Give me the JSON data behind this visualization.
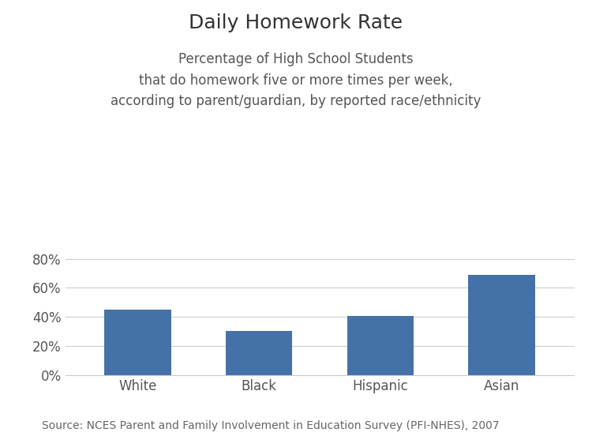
{
  "title": "Daily Homework Rate",
  "subtitle": "Percentage of High School Students\nthat do homework five or more times per week,\naccording to parent/guardian, by reported race/ethnicity",
  "source": "Source: NCES Parent and Family Involvement in Education Survey (PFI-NHES), 2007",
  "categories": [
    "White",
    "Black",
    "Hispanic",
    "Asian"
  ],
  "values": [
    0.45,
    0.305,
    0.405,
    0.69
  ],
  "bar_color": "#4472a8",
  "ylim": [
    0,
    0.9
  ],
  "yticks": [
    0.0,
    0.2,
    0.4,
    0.6,
    0.8
  ],
  "background_color": "#ffffff",
  "title_fontsize": 18,
  "subtitle_fontsize": 12,
  "tick_fontsize": 12,
  "source_fontsize": 10
}
